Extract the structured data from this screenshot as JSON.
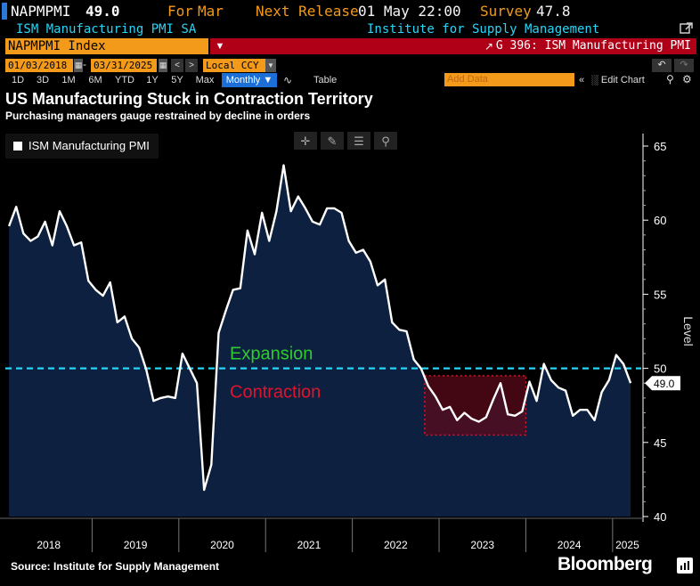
{
  "header": {
    "ticker": "NAPMPMI",
    "last_value": "49.0",
    "for_label": "For",
    "for_value": "Mar",
    "next_release_label": "Next Release",
    "next_release_value": "01 May 22:00",
    "survey_label": "Survey",
    "survey_value": "47.8",
    "series_description": "ISM Manufacturing PMI SA",
    "source_org": "Institute for Supply Management"
  },
  "security_bar": {
    "security": "NAPMPMI Index",
    "graph_title": "G 396: ISM Manufacturing PMI"
  },
  "toolbar": {
    "start_date": "01/03/2018",
    "end_date": "03/31/2025",
    "currency": "Local CCY",
    "periods": [
      "1D",
      "3D",
      "1M",
      "6M",
      "YTD",
      "1Y",
      "5Y",
      "Max"
    ],
    "frequency": "Monthly",
    "table_label": "Table",
    "add_data_placeholder": "Add Data",
    "edit_chart_label": "Edit Chart"
  },
  "footer": {
    "source": "Source: Institute for Supply Management",
    "brand": "Bloomberg"
  },
  "colors": {
    "accent_orange": "#f39a1a",
    "banner_red": "#b00018",
    "cyan": "#2ad4f5",
    "area_fill": "#0d2040",
    "expansion_green": "#2ecc2e",
    "contraction_red": "#e0142a"
  },
  "chart_data": {
    "type": "area",
    "title": "US Manufacturing Stuck in Contraction Territory",
    "subtitle": "Purchasing managers gauge restrained by decline in orders",
    "ylabel": "Level",
    "ylim": [
      40,
      65
    ],
    "yticks": [
      40,
      45,
      50,
      55,
      60,
      65
    ],
    "xticks": [
      "2018",
      "2019",
      "2020",
      "2021",
      "2022",
      "2023",
      "2024",
      "2025"
    ],
    "legend": [
      "ISM Manufacturing PMI"
    ],
    "last_value_label": "49.0",
    "reference_line": 50,
    "annotations": {
      "expansion": "Expansion",
      "contraction": "Contraction"
    },
    "highlight_range": {
      "x_start": "2022-11",
      "x_end": "2023-12",
      "y_low": 45.5,
      "y_high": 49.5
    },
    "series": [
      {
        "name": "ISM Manufacturing PMI",
        "x": [
          "2018-01",
          "2018-02",
          "2018-03",
          "2018-04",
          "2018-05",
          "2018-06",
          "2018-07",
          "2018-08",
          "2018-09",
          "2018-10",
          "2018-11",
          "2018-12",
          "2019-01",
          "2019-02",
          "2019-03",
          "2019-04",
          "2019-05",
          "2019-06",
          "2019-07",
          "2019-08",
          "2019-09",
          "2019-10",
          "2019-11",
          "2019-12",
          "2020-01",
          "2020-02",
          "2020-03",
          "2020-04",
          "2020-05",
          "2020-06",
          "2020-07",
          "2020-08",
          "2020-09",
          "2020-10",
          "2020-11",
          "2020-12",
          "2021-01",
          "2021-02",
          "2021-03",
          "2021-04",
          "2021-05",
          "2021-06",
          "2021-07",
          "2021-08",
          "2021-09",
          "2021-10",
          "2021-11",
          "2021-12",
          "2022-01",
          "2022-02",
          "2022-03",
          "2022-04",
          "2022-05",
          "2022-06",
          "2022-07",
          "2022-08",
          "2022-09",
          "2022-10",
          "2022-11",
          "2022-12",
          "2023-01",
          "2023-02",
          "2023-03",
          "2023-04",
          "2023-05",
          "2023-06",
          "2023-07",
          "2023-08",
          "2023-09",
          "2023-10",
          "2023-11",
          "2023-12",
          "2024-01",
          "2024-02",
          "2024-03",
          "2024-04",
          "2024-05",
          "2024-06",
          "2024-07",
          "2024-08",
          "2024-09",
          "2024-10",
          "2024-11",
          "2024-12",
          "2025-01",
          "2025-02",
          "2025-03"
        ],
        "values": [
          59.6,
          60.9,
          59.1,
          58.6,
          58.9,
          59.9,
          58.3,
          60.6,
          59.6,
          58.3,
          58.5,
          55.9,
          55.3,
          54.9,
          55.8,
          53.1,
          53.5,
          52.0,
          51.4,
          49.9,
          47.8,
          48.0,
          48.1,
          48.0,
          51.0,
          50.0,
          49.0,
          41.8,
          43.5,
          52.4,
          53.9,
          55.3,
          55.4,
          59.3,
          57.7,
          60.5,
          58.6,
          60.6,
          63.7,
          60.6,
          61.6,
          60.8,
          59.9,
          59.7,
          60.8,
          60.8,
          60.5,
          58.6,
          57.8,
          58.0,
          57.2,
          55.6,
          56.0,
          53.1,
          52.6,
          52.5,
          50.6,
          50.0,
          48.8,
          48.1,
          47.2,
          47.4,
          46.5,
          47.0,
          46.6,
          46.4,
          46.7,
          47.9,
          49.0,
          46.9,
          46.8,
          47.1,
          49.1,
          47.8,
          50.3,
          49.2,
          48.7,
          48.5,
          46.8,
          47.2,
          47.2,
          46.5,
          48.4,
          49.2,
          50.9,
          50.3,
          49.0
        ]
      }
    ]
  }
}
